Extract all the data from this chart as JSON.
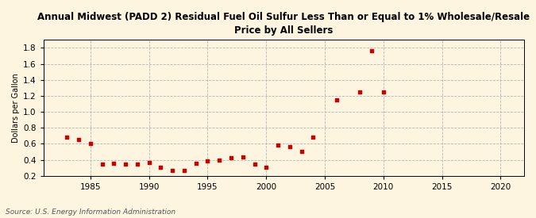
{
  "title": "Annual Midwest (PADD 2) Residual Fuel Oil Sulfur Less Than or Equal to 1% Wholesale/Resale\nPrice by All Sellers",
  "ylabel": "Dollars per Gallon",
  "source": "Source: U.S. Energy Information Administration",
  "background_color": "#fdf5e0",
  "marker_color": "#cc0000",
  "xlim": [
    1981,
    2022
  ],
  "ylim": [
    0.2,
    1.9
  ],
  "xticks": [
    1985,
    1990,
    1995,
    2000,
    2005,
    2010,
    2015,
    2020
  ],
  "yticks": [
    0.2,
    0.4,
    0.6,
    0.8,
    1.0,
    1.2,
    1.4,
    1.6,
    1.8
  ],
  "data": {
    "years": [
      1983,
      1984,
      1985,
      1986,
      1987,
      1988,
      1989,
      1990,
      1991,
      1992,
      1993,
      1994,
      1995,
      1996,
      1997,
      1998,
      1999,
      2000,
      2001,
      2002,
      2003,
      2004,
      2006,
      2008,
      2009,
      2010
    ],
    "values": [
      0.68,
      0.65,
      0.6,
      0.35,
      0.36,
      0.35,
      0.35,
      0.37,
      0.31,
      0.27,
      0.27,
      0.36,
      0.39,
      0.4,
      0.43,
      0.44,
      0.35,
      0.31,
      0.58,
      0.56,
      0.5,
      0.68,
      1.15,
      1.25,
      1.76,
      1.25
    ]
  }
}
